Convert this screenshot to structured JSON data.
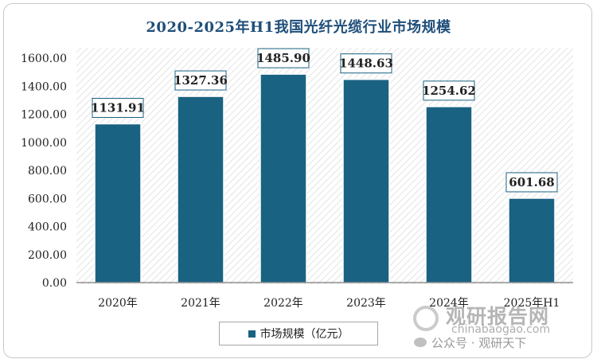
{
  "chart_data": {
    "type": "bar",
    "title": "2020-2025年H1我国光纤光缆行业市场规模",
    "categories": [
      "2020年",
      "2021年",
      "2022年",
      "2023年",
      "2024年",
      "2025年H1"
    ],
    "series": [
      {
        "name": "市场规模（亿元）",
        "values": [
          1131.91,
          1327.36,
          1485.9,
          1448.63,
          1254.62,
          601.68
        ],
        "labels": [
          "1131.91",
          "1327.36",
          "1485.90",
          "1448.63",
          "1254.62",
          "601.68"
        ]
      }
    ],
    "yticks": [
      "0.00",
      "200.00",
      "400.00",
      "600.00",
      "800.00",
      "1000.00",
      "1200.00",
      "1400.00",
      "1600.00"
    ],
    "ylim": [
      0,
      1600
    ],
    "bar_color": "#1a6282",
    "grid": false,
    "background_pattern": "diagonal-hatch",
    "legend_position": "bottom"
  },
  "watermark": {
    "brand": "观研报告网",
    "url": "chinabaogao.com",
    "account": "公众号 · 观研天下"
  }
}
